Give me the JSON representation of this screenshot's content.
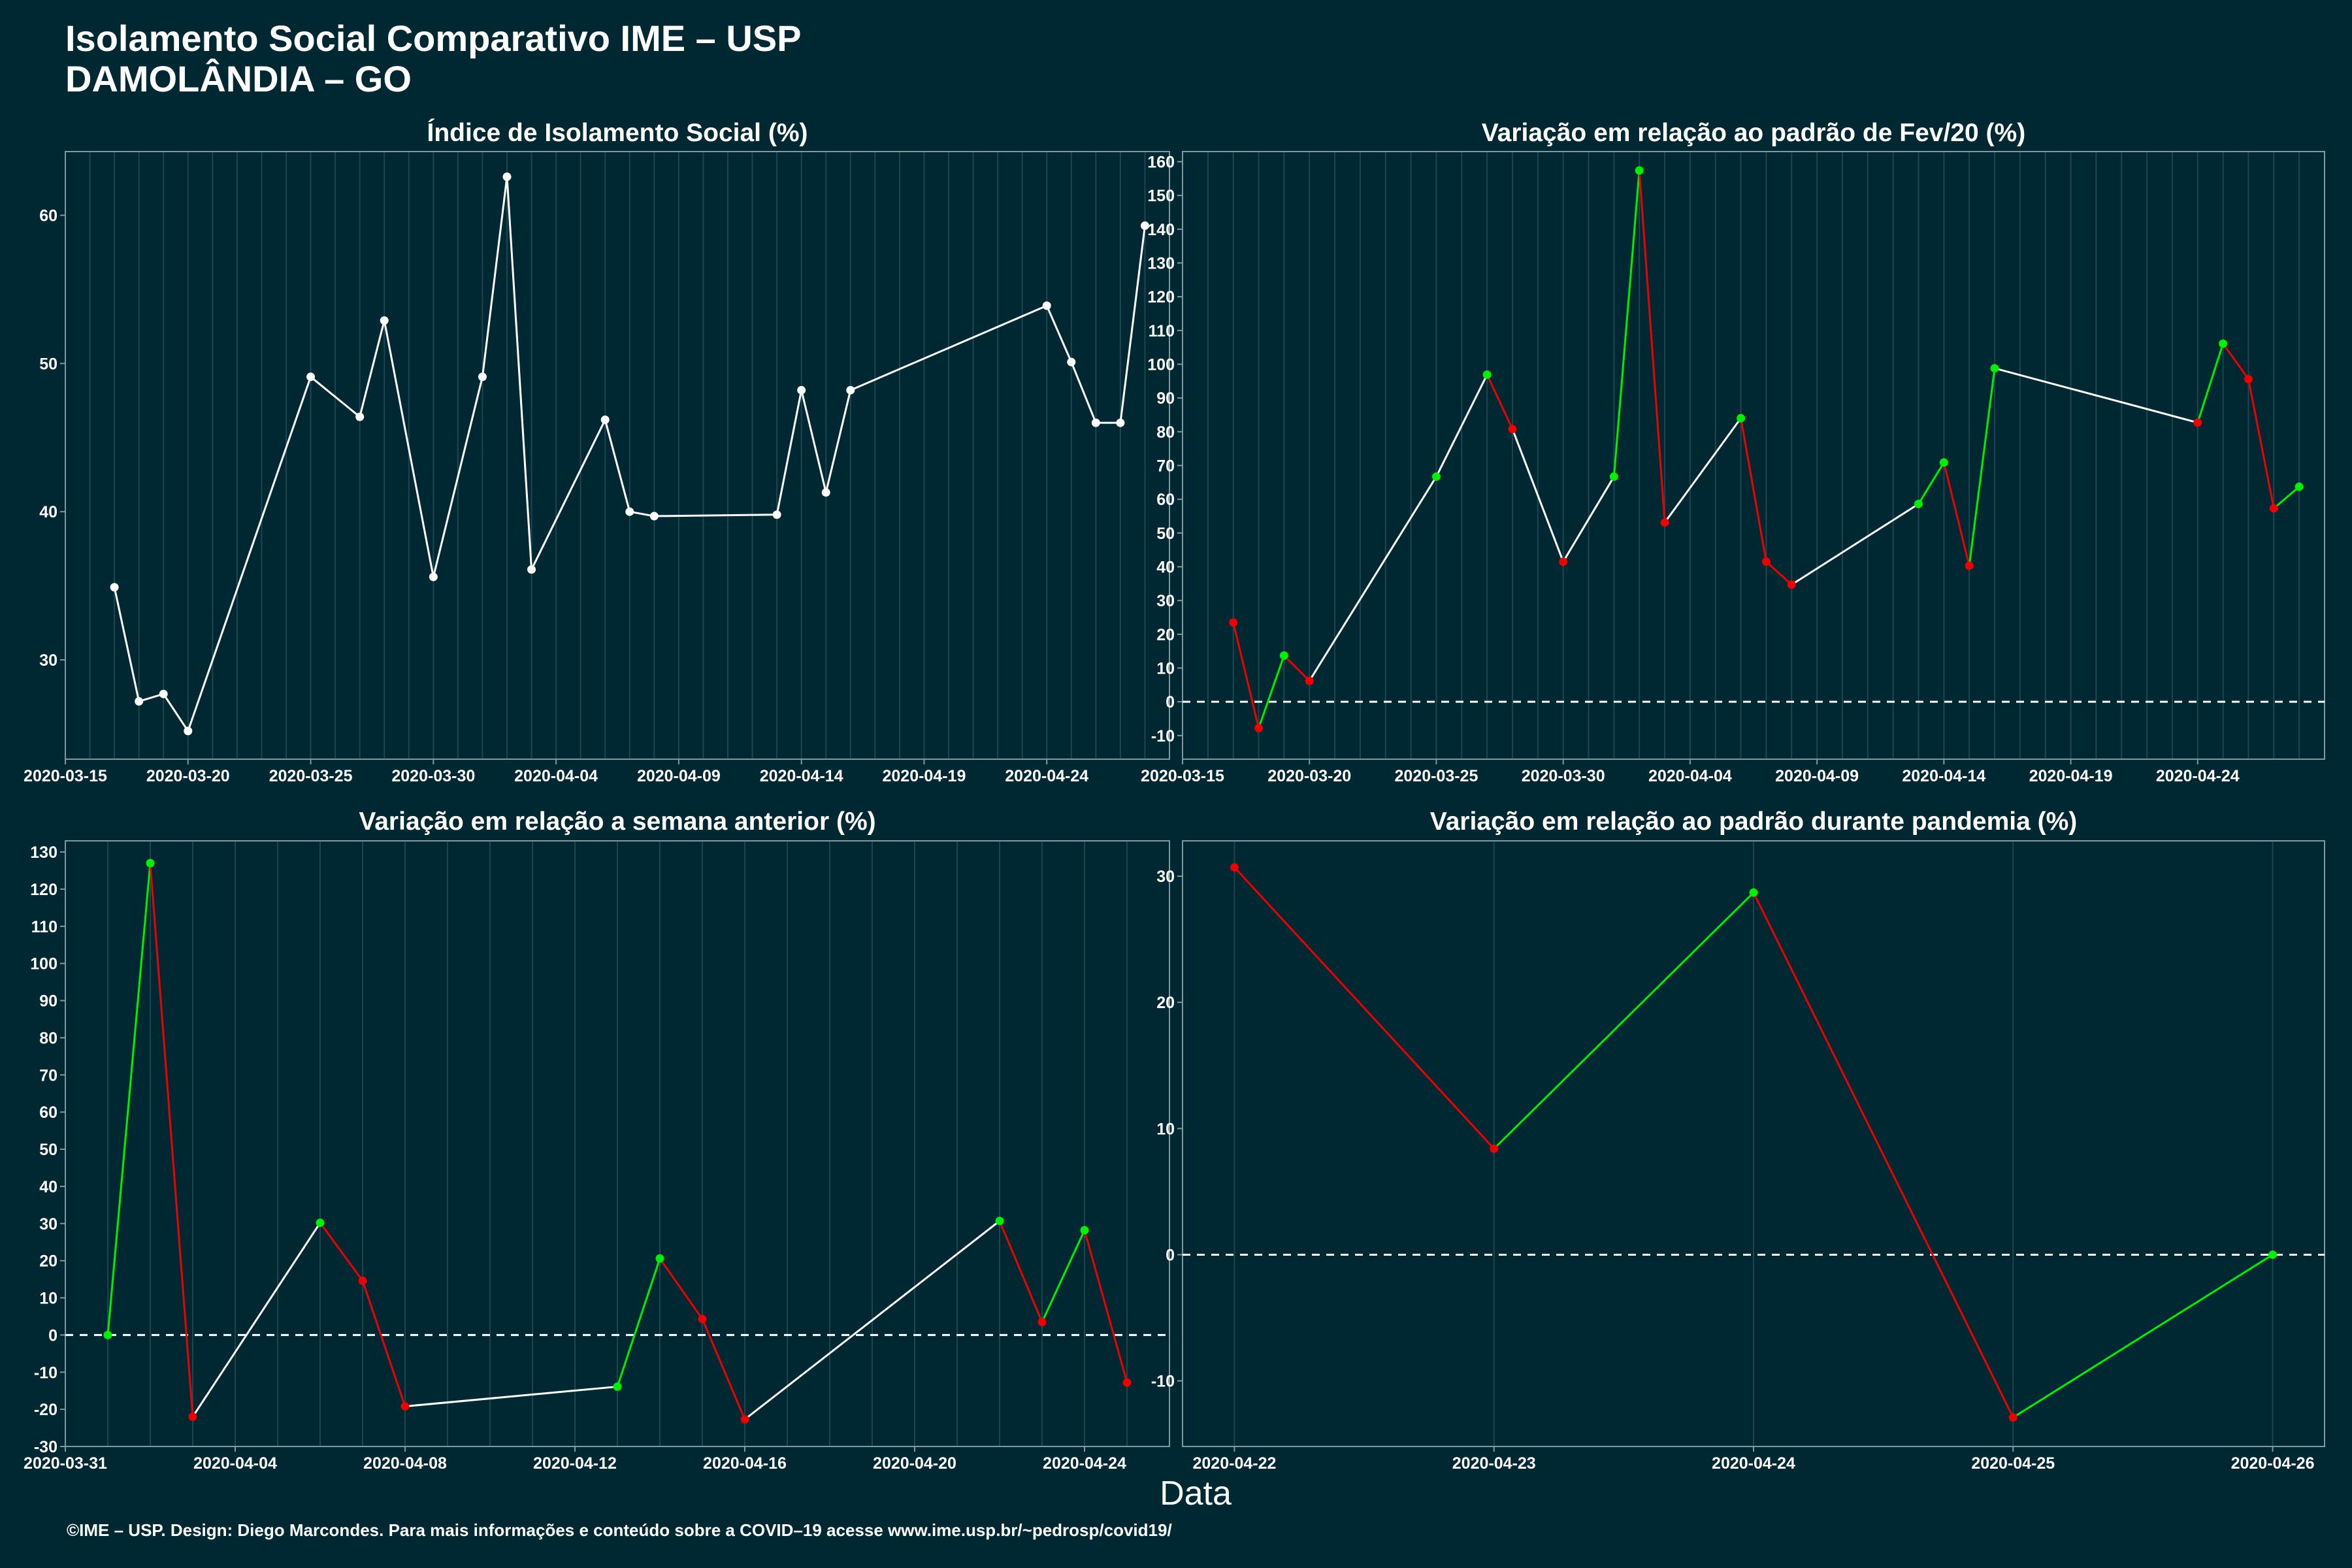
{
  "header": {
    "title": "Isolamento Social Comparativo IME – USP",
    "subtitle": "DAMOLÂNDIA – GO"
  },
  "footer": {
    "text": "©IME – USP. Design: Diego Marcondes. Para mais informações e conteúdo sobre a COVID–19 acesse www.ime.usp.br/~pedrosp/covid19/"
  },
  "colors": {
    "background": "#002833",
    "neutral": "#ffffff",
    "increase": "#00ee00",
    "decrease": "#ee0000",
    "gridline": "#1d4750",
    "axis": "#7f9aa0"
  },
  "chart_data": [
    {
      "id": "isolation-index",
      "type": "line",
      "title": "Índice de Isolamento Social (%)",
      "xlabel": "",
      "ylabel": "",
      "color_mode": "neutral",
      "x_type": "date",
      "xlim": [
        "2020-03-15",
        "2020-04-29"
      ],
      "ylim": [
        23.3,
        64.3
      ],
      "x_ticks": [
        "2020-03-15",
        "2020-03-20",
        "2020-03-25",
        "2020-03-30",
        "2020-04-04",
        "2020-04-09",
        "2020-04-14",
        "2020-04-19",
        "2020-04-24"
      ],
      "y_ticks": [
        30,
        40,
        50,
        60
      ],
      "dashed_zero": false,
      "points": [
        {
          "x": "2020-03-17",
          "y": 34.9
        },
        {
          "x": "2020-03-18",
          "y": 27.2
        },
        {
          "x": "2020-03-19",
          "y": 27.7
        },
        {
          "x": "2020-03-20",
          "y": 25.2
        },
        {
          "x": "2020-03-25",
          "y": 49.1
        },
        {
          "x": "2020-03-27",
          "y": 46.4
        },
        {
          "x": "2020-03-28",
          "y": 52.9
        },
        {
          "x": "2020-03-30",
          "y": 35.6
        },
        {
          "x": "2020-04-01",
          "y": 49.1
        },
        {
          "x": "2020-04-02",
          "y": 62.6
        },
        {
          "x": "2020-04-03",
          "y": 36.1
        },
        {
          "x": "2020-04-06",
          "y": 46.2
        },
        {
          "x": "2020-04-07",
          "y": 40.0
        },
        {
          "x": "2020-04-08",
          "y": 39.7
        },
        {
          "x": "2020-04-13",
          "y": 39.8
        },
        {
          "x": "2020-04-14",
          "y": 48.2
        },
        {
          "x": "2020-04-15",
          "y": 41.3
        },
        {
          "x": "2020-04-16",
          "y": 48.2
        },
        {
          "x": "2020-04-24",
          "y": 53.9
        },
        {
          "x": "2020-04-25",
          "y": 50.1
        },
        {
          "x": "2020-04-26",
          "y": 46.0
        },
        {
          "x": "2020-04-27",
          "y": 46.0
        },
        {
          "x": "2020-04-28",
          "y": 59.3
        }
      ]
    },
    {
      "id": "variation-feb",
      "type": "line",
      "title": "Variação em relação ao padrão de Fev/20 (%)",
      "xlabel": "",
      "ylabel": "",
      "color_mode": "change",
      "x_type": "date",
      "xlim": [
        "2020-03-15",
        "2020-04-29"
      ],
      "ylim": [
        -17,
        163
      ],
      "x_ticks": [
        "2020-03-15",
        "2020-03-20",
        "2020-03-25",
        "2020-03-30",
        "2020-04-04",
        "2020-04-09",
        "2020-04-14",
        "2020-04-19",
        "2020-04-24"
      ],
      "y_ticks": [
        -10,
        0,
        10,
        20,
        30,
        40,
        50,
        60,
        70,
        80,
        90,
        100,
        110,
        120,
        130,
        140,
        150,
        160
      ],
      "dashed_zero": true,
      "points": [
        {
          "x": "2020-03-17",
          "y": 23.5
        },
        {
          "x": "2020-03-18",
          "y": -7.8
        },
        {
          "x": "2020-03-19",
          "y": 13.7
        },
        {
          "x": "2020-03-20",
          "y": 6.2
        },
        {
          "x": "2020-03-25",
          "y": 66.7
        },
        {
          "x": "2020-03-27",
          "y": 96.9
        },
        {
          "x": "2020-03-28",
          "y": 80.8
        },
        {
          "x": "2020-03-30",
          "y": 41.5
        },
        {
          "x": "2020-04-01",
          "y": 66.7
        },
        {
          "x": "2020-04-02",
          "y": 157.4
        },
        {
          "x": "2020-04-03",
          "y": 53.1
        },
        {
          "x": "2020-04-06",
          "y": 84.0
        },
        {
          "x": "2020-04-07",
          "y": 41.5
        },
        {
          "x": "2020-04-08",
          "y": 34.7
        },
        {
          "x": "2020-04-13",
          "y": 58.6
        },
        {
          "x": "2020-04-14",
          "y": 70.9
        },
        {
          "x": "2020-04-15",
          "y": 40.3
        },
        {
          "x": "2020-04-16",
          "y": 98.8
        },
        {
          "x": "2020-04-24",
          "y": 82.7
        },
        {
          "x": "2020-04-25",
          "y": 106.1
        },
        {
          "x": "2020-04-26",
          "y": 95.6
        },
        {
          "x": "2020-04-27",
          "y": 57.3
        },
        {
          "x": "2020-04-28",
          "y": 63.7
        }
      ]
    },
    {
      "id": "variation-week",
      "type": "line",
      "title": "Variação em relação a semana anterior (%)",
      "xlabel": "",
      "ylabel": "",
      "color_mode": "change",
      "x_type": "date",
      "xlim": [
        "2020-03-31",
        "2020-04-26"
      ],
      "ylim": [
        -30,
        133
      ],
      "x_ticks": [
        "2020-03-31",
        "2020-04-04",
        "2020-04-08",
        "2020-04-12",
        "2020-04-16",
        "2020-04-20",
        "2020-04-24"
      ],
      "y_ticks": [
        -30,
        -20,
        -10,
        0,
        10,
        20,
        30,
        40,
        50,
        60,
        70,
        80,
        90,
        100,
        110,
        120,
        130
      ],
      "dashed_zero": true,
      "points": [
        {
          "x": "2020-04-01",
          "y": 0.0
        },
        {
          "x": "2020-04-02",
          "y": 127.0
        },
        {
          "x": "2020-04-03",
          "y": -22.0
        },
        {
          "x": "2020-04-06",
          "y": 30.2
        },
        {
          "x": "2020-04-07",
          "y": 14.6
        },
        {
          "x": "2020-04-08",
          "y": -19.2
        },
        {
          "x": "2020-04-13",
          "y": -13.9
        },
        {
          "x": "2020-04-14",
          "y": 20.6
        },
        {
          "x": "2020-04-15",
          "y": 4.3
        },
        {
          "x": "2020-04-16",
          "y": -22.7
        },
        {
          "x": "2020-04-22",
          "y": 30.7
        },
        {
          "x": "2020-04-23",
          "y": 3.5
        },
        {
          "x": "2020-04-24",
          "y": 28.2
        },
        {
          "x": "2020-04-25",
          "y": -12.8
        }
      ]
    },
    {
      "id": "variation-pandemic",
      "type": "line",
      "title": "Variação em relação ao padrão durante pandemia (%)",
      "xlabel": "",
      "ylabel": "",
      "color_mode": "change",
      "x_type": "date",
      "xlim": [
        "2020-04-21.8",
        "2020-04-26.2"
      ],
      "ylim": [
        -15.2,
        32.8
      ],
      "x_ticks": [
        "2020-04-22",
        "2020-04-23",
        "2020-04-24",
        "2020-04-25",
        "2020-04-26"
      ],
      "y_ticks": [
        -10,
        0,
        10,
        20,
        30
      ],
      "dashed_zero": true,
      "points": [
        {
          "x": "2020-04-22",
          "y": 30.7
        },
        {
          "x": "2020-04-23",
          "y": 8.4
        },
        {
          "x": "2020-04-24",
          "y": 28.7
        },
        {
          "x": "2020-04-25",
          "y": -12.9
        },
        {
          "x": "2020-04-26",
          "y": 0.0
        }
      ]
    }
  ],
  "x_axis_title": "Data"
}
